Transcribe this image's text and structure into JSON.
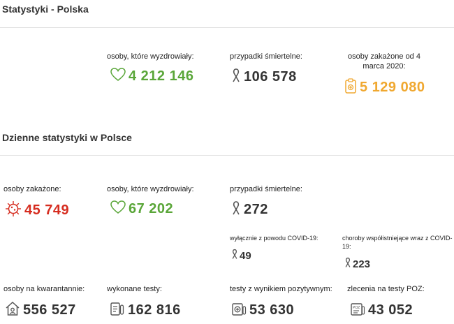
{
  "section1": {
    "title": "Statystyki - Polska",
    "recovered": {
      "label": "osoby, które wyzdrowiały:",
      "value": "4 212 146",
      "icon": "heart-icon"
    },
    "deaths": {
      "label": "przypadki śmiertelne:",
      "value": "106 578",
      "icon": "ribbon-icon"
    },
    "infected": {
      "label": "osoby zakażone od 4 marca 2020:",
      "value": "5 129 080",
      "icon": "clipboard-icon"
    }
  },
  "section2": {
    "title": "Dzienne statystyki w Polsce",
    "infected": {
      "label": "osoby zakażone:",
      "value": "45 749",
      "icon": "virus-icon"
    },
    "recovered": {
      "label": "osoby, które wyzdrowiały:",
      "value": "67 202",
      "icon": "heart-icon"
    },
    "deaths": {
      "label": "przypadki śmiertelne:",
      "value": "272",
      "icon": "ribbon-icon"
    },
    "deaths_covid_only": {
      "label": "wyłącznie z powodu COVID-19:",
      "value": "49",
      "icon": "ribbon-icon"
    },
    "deaths_comorbid": {
      "label": "choroby współistniejące wraz z COVID-19:",
      "value": "223",
      "icon": "ribbon-icon"
    },
    "quarantine": {
      "label": "osoby na kwarantannie:",
      "value": "556 527",
      "icon": "house-icon"
    },
    "tests": {
      "label": "wykonane testy:",
      "value": "162 816",
      "icon": "test-tubes-icon"
    },
    "positive_tests": {
      "label": "testy z wynikiem pozytywnym:",
      "value": "53 630",
      "icon": "positive-test-icon"
    },
    "poz_orders": {
      "label": "zlecenia na testy POZ:",
      "value": "43 052",
      "icon": "poz-order-icon"
    }
  },
  "colors": {
    "green": "#5aa639",
    "red": "#d62d20",
    "orange": "#f0a830",
    "dark": "#333333",
    "divider": "#e2e2e2"
  }
}
